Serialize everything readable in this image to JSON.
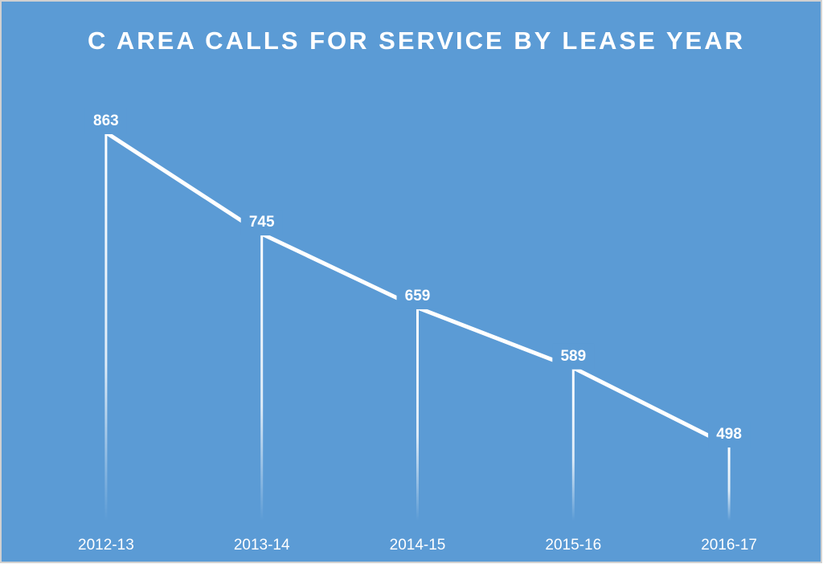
{
  "chart_data": {
    "type": "line",
    "title": "C AREA CALLS FOR SERVICE BY LEASE YEAR",
    "categories": [
      "2012-13",
      "2013-14",
      "2014-15",
      "2015-16",
      "2016-17"
    ],
    "values": [
      863,
      745,
      659,
      589,
      498
    ],
    "color": "#ffffff",
    "background": "#5b9bd5",
    "drop_lines": true
  }
}
